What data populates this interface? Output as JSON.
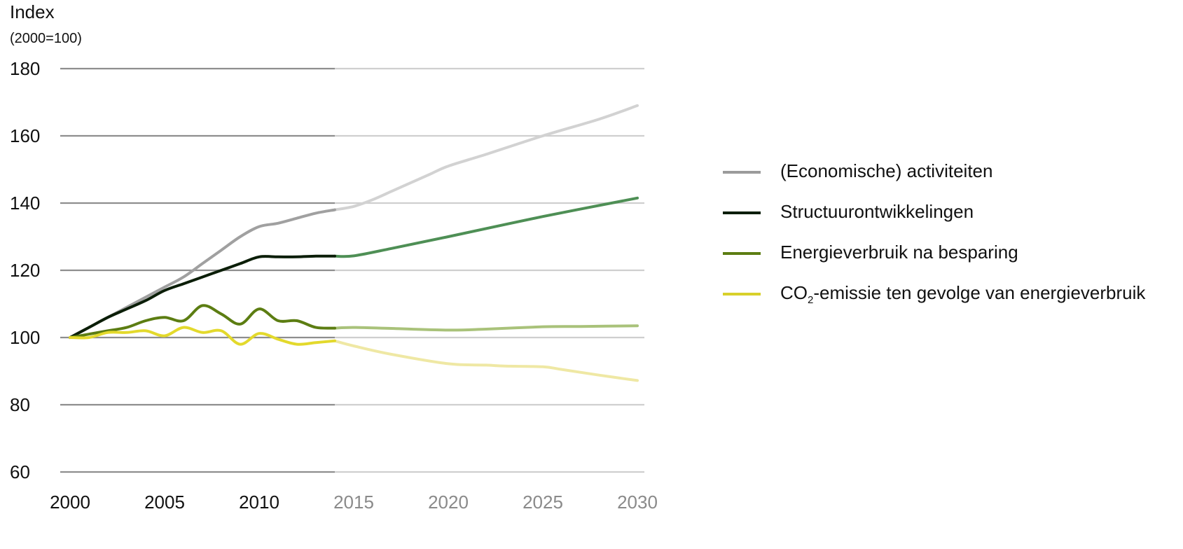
{
  "chart_data": {
    "type": "line",
    "ylabel": "Index",
    "ylabel_sub": "(2000=100)",
    "ylim": [
      60,
      180
    ],
    "yticks": [
      60,
      80,
      100,
      120,
      140,
      160,
      180
    ],
    "xlim": [
      2000,
      2030
    ],
    "xticks": [
      2000,
      2005,
      2010,
      2015,
      2020,
      2025,
      2030
    ],
    "projection_from": 2014,
    "grid": true,
    "legend_position": "right",
    "series": [
      {
        "name": "(Economische) activiteiten",
        "legend_color": "#9b9b9b",
        "history_color": "#a0a0a0",
        "projection_color": "#d2d2d2",
        "points": [
          [
            2000,
            100
          ],
          [
            2001,
            103
          ],
          [
            2002,
            106
          ],
          [
            2003,
            109
          ],
          [
            2004,
            112
          ],
          [
            2005,
            115
          ],
          [
            2006,
            118
          ],
          [
            2007,
            122
          ],
          [
            2008,
            126
          ],
          [
            2009,
            130
          ],
          [
            2010,
            133
          ],
          [
            2011,
            134
          ],
          [
            2012,
            135.5
          ],
          [
            2013,
            137
          ],
          [
            2014,
            138
          ],
          [
            2015,
            139
          ],
          [
            2016,
            141
          ],
          [
            2017,
            143.5
          ],
          [
            2018,
            146
          ],
          [
            2019,
            148.5
          ],
          [
            2020,
            151
          ],
          [
            2022,
            154.5
          ],
          [
            2025,
            160
          ],
          [
            2028,
            165
          ],
          [
            2030,
            169
          ]
        ]
      },
      {
        "name": "Structuurontwikkelingen",
        "legend_color": "#0b1e08",
        "history_color": "#0b1e08",
        "projection_color": "#4e8f55",
        "points": [
          [
            2000,
            100
          ],
          [
            2001,
            103
          ],
          [
            2002,
            106
          ],
          [
            2003,
            108.5
          ],
          [
            2004,
            111
          ],
          [
            2005,
            114
          ],
          [
            2006,
            116
          ],
          [
            2007,
            118
          ],
          [
            2008,
            120
          ],
          [
            2009,
            122
          ],
          [
            2010,
            124
          ],
          [
            2011,
            124
          ],
          [
            2012,
            124
          ],
          [
            2013,
            124.2
          ],
          [
            2014,
            124.2
          ],
          [
            2015,
            124.3
          ],
          [
            2017,
            126.5
          ],
          [
            2020,
            130
          ],
          [
            2025,
            136
          ],
          [
            2030,
            141.5
          ]
        ]
      },
      {
        "name": "Energieverbruik na besparing",
        "legend_color": "#5c7d12",
        "history_color": "#5c7d12",
        "projection_color": "#a9c27a",
        "points": [
          [
            2000,
            100
          ],
          [
            2001,
            101
          ],
          [
            2002,
            102
          ],
          [
            2003,
            103
          ],
          [
            2004,
            105
          ],
          [
            2005,
            106
          ],
          [
            2006,
            105
          ],
          [
            2007,
            109.5
          ],
          [
            2008,
            107
          ],
          [
            2009,
            104
          ],
          [
            2010,
            108.5
          ],
          [
            2011,
            105
          ],
          [
            2012,
            105
          ],
          [
            2013,
            103
          ],
          [
            2014,
            102.8
          ],
          [
            2015,
            103
          ],
          [
            2017,
            102.7
          ],
          [
            2020,
            102.2
          ],
          [
            2022,
            102.5
          ],
          [
            2025,
            103.2
          ],
          [
            2027,
            103.3
          ],
          [
            2030,
            103.5
          ]
        ]
      },
      {
        "name": "CO2-emissie ten gevolge van energieverbruik",
        "legend_color": "#d8d02a",
        "history_color": "#e3d92c",
        "projection_color": "#efe8a4",
        "points": [
          [
            2000,
            100
          ],
          [
            2001,
            100
          ],
          [
            2002,
            101.5
          ],
          [
            2003,
            101.5
          ],
          [
            2004,
            102
          ],
          [
            2005,
            100.5
          ],
          [
            2006,
            103
          ],
          [
            2007,
            101.5
          ],
          [
            2008,
            102
          ],
          [
            2009,
            98
          ],
          [
            2010,
            101.2
          ],
          [
            2011,
            99.5
          ],
          [
            2012,
            98
          ],
          [
            2013,
            98.5
          ],
          [
            2014,
            99
          ],
          [
            2015,
            97.5
          ],
          [
            2017,
            95
          ],
          [
            2020,
            92.2
          ],
          [
            2022,
            91.8
          ],
          [
            2023,
            91.5
          ],
          [
            2025,
            91.3
          ],
          [
            2026,
            90.5
          ],
          [
            2028,
            88.8
          ],
          [
            2030,
            87.2
          ]
        ]
      }
    ]
  },
  "legend_html": {
    "co2_prefix": "CO",
    "co2_subscript": "2",
    "co2_suffix": "-emissie ten gevolge van energieverbruik"
  }
}
